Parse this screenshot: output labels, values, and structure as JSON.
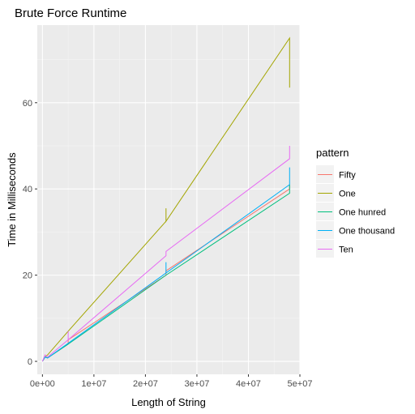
{
  "chart_data": {
    "type": "line",
    "title": "Brute Force Runtime",
    "xlabel": "Length of String",
    "ylabel": "Time in Milliseconds",
    "xlim": [
      -1000000,
      50000000
    ],
    "ylim": [
      -3,
      78
    ],
    "x_ticks": [
      0,
      10000000,
      20000000,
      30000000,
      40000000,
      50000000
    ],
    "x_tick_labels": [
      "0e+00",
      "1e+07",
      "2e+07",
      "3e+07",
      "4e+07",
      "5e+07"
    ],
    "y_ticks": [
      0,
      20,
      40,
      60
    ],
    "y_tick_labels": [
      "0",
      "20",
      "40",
      "60"
    ],
    "grid": true,
    "legend": {
      "title": "pattern",
      "position": "right"
    },
    "series": [
      {
        "name": "Fifty",
        "color": "#F8766D",
        "points": [
          [
            0,
            0
          ],
          [
            500000,
            1
          ],
          [
            1000000,
            0.8
          ],
          [
            5000000,
            4
          ],
          [
            5000000,
            5
          ],
          [
            24000000,
            20
          ],
          [
            24000000,
            21
          ],
          [
            48000000,
            40
          ],
          [
            48000000,
            41
          ]
        ]
      },
      {
        "name": "One",
        "color": "#A3A500",
        "points": [
          [
            0,
            0
          ],
          [
            500000,
            1
          ],
          [
            1000000,
            1.5
          ],
          [
            5000000,
            7
          ],
          [
            24000000,
            32.5
          ],
          [
            24000000,
            35.5
          ],
          [
            24000000,
            32.5
          ],
          [
            48000000,
            75
          ],
          [
            48000000,
            63.5
          ]
        ]
      },
      {
        "name": "One hunred",
        "color": "#00BF7D",
        "points": [
          [
            0,
            0
          ],
          [
            500000,
            1
          ],
          [
            1000000,
            0.8
          ],
          [
            5000000,
            4
          ],
          [
            24000000,
            20
          ],
          [
            48000000,
            39
          ],
          [
            48000000,
            41
          ]
        ]
      },
      {
        "name": "One thousand",
        "color": "#00B0F6",
        "points": [
          [
            0,
            0
          ],
          [
            500000,
            1
          ],
          [
            1000000,
            0.8
          ],
          [
            5000000,
            4.2
          ],
          [
            24000000,
            20.5
          ],
          [
            24000000,
            23
          ],
          [
            24000000,
            20.5
          ],
          [
            48000000,
            41
          ],
          [
            48000000,
            45
          ]
        ]
      },
      {
        "name": "Ten",
        "color": "#E76BF3",
        "points": [
          [
            0,
            0
          ],
          [
            500000,
            1.5
          ],
          [
            1000000,
            1
          ],
          [
            5000000,
            5
          ],
          [
            5000000,
            7
          ],
          [
            5000000,
            5
          ],
          [
            24000000,
            24.5
          ],
          [
            24000000,
            25.5
          ],
          [
            48000000,
            47
          ],
          [
            48000000,
            50
          ]
        ]
      }
    ]
  }
}
